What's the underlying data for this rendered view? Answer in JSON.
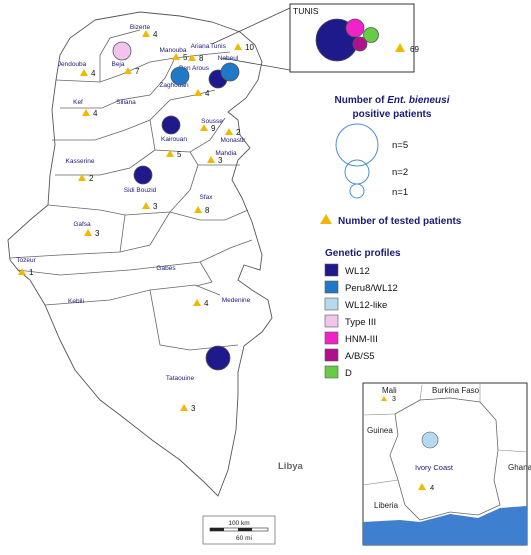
{
  "colors": {
    "WL12": "#1f1a8c",
    "Peru8/WL12": "#1f78c8",
    "WL12-like": "#b7d9f0",
    "Type III": "#f2c4ec",
    "HNM-III": "#f022c8",
    "A/B/S5": "#b0108e",
    "D": "#66cc44",
    "triangle": "#f2b800"
  },
  "inset_tunis": {
    "title": "TUNIS",
    "tested": "69",
    "profiles": [
      "WL12",
      "HNM-III",
      "A/B/S5",
      "D"
    ]
  },
  "governorates": [
    {
      "name": "Bizerte",
      "tested": "4"
    },
    {
      "name": "Ariana",
      "tested": ""
    },
    {
      "name": "Tunis",
      "tested": ""
    },
    {
      "name": "Manouba",
      "tested": "5"
    },
    {
      "name": "Beja",
      "tested": "7"
    },
    {
      "name": "Jendouba",
      "tested": "4"
    },
    {
      "name": "Nabeul",
      "tested": "10"
    },
    {
      "name": "Ben Arous",
      "tested": "8"
    },
    {
      "name": "Zaghouan",
      "tested": "4"
    },
    {
      "name": "Kef",
      "tested": "4"
    },
    {
      "name": "Siliana",
      "tested": ""
    },
    {
      "name": "Kairouan",
      "tested": "5"
    },
    {
      "name": "Sousse",
      "tested": "9"
    },
    {
      "name": "Monastir",
      "tested": "2"
    },
    {
      "name": "Mahdia",
      "tested": "3"
    },
    {
      "name": "Kasserine",
      "tested": "2"
    },
    {
      "name": "Sidi Bouzid",
      "tested": "3"
    },
    {
      "name": "Sfax",
      "tested": "8"
    },
    {
      "name": "Gafsa",
      "tested": "3"
    },
    {
      "name": "Tozeur",
      "tested": "1"
    },
    {
      "name": "Gabes",
      "tested": ""
    },
    {
      "name": "Kebili",
      "tested": ""
    },
    {
      "name": "Medenine",
      "tested": "4"
    },
    {
      "name": "Tataouine",
      "tested": "3"
    }
  ],
  "positive_circles": [
    {
      "location": "Beja",
      "profile": "Type III",
      "n": 1
    },
    {
      "location": "Manouba",
      "profile": "Peru8/WL12",
      "n": 1
    },
    {
      "location": "Ben Arous",
      "profile": "WL12",
      "n": 1
    },
    {
      "location": "Nabeul",
      "profile": "Peru8/WL12",
      "n": 1
    },
    {
      "location": "Kairouan",
      "profile": "WL12",
      "n": 1
    },
    {
      "location": "Sidi Bouzid",
      "profile": "WL12",
      "n": 1
    },
    {
      "location": "Tataouine",
      "profile": "WL12",
      "n": 2
    }
  ],
  "country_label": "Libya",
  "legend": {
    "size_title_part1": "Number of ",
    "size_title_italic": "Ent. bieneusi",
    "size_title_part2": "positive patients",
    "sizes": [
      "n=5",
      "n=2",
      "n=1"
    ],
    "tested_label": "Number of tested patients",
    "profiles_title": "Genetic profiles",
    "profiles": [
      "WL12",
      "Peru8/WL12",
      "WL12-like",
      "Type III",
      "HNM-III",
      "A/B/S5",
      "D"
    ]
  },
  "inset_ivory": {
    "country": "Ivory Coast",
    "tested": "4",
    "neighbors": [
      "Mali",
      "Burkina Faso",
      "Guinea",
      "Ghana",
      "Liberia"
    ],
    "mali_tested": "3"
  },
  "scale": {
    "km": "100 km",
    "mi": "60 mi"
  }
}
